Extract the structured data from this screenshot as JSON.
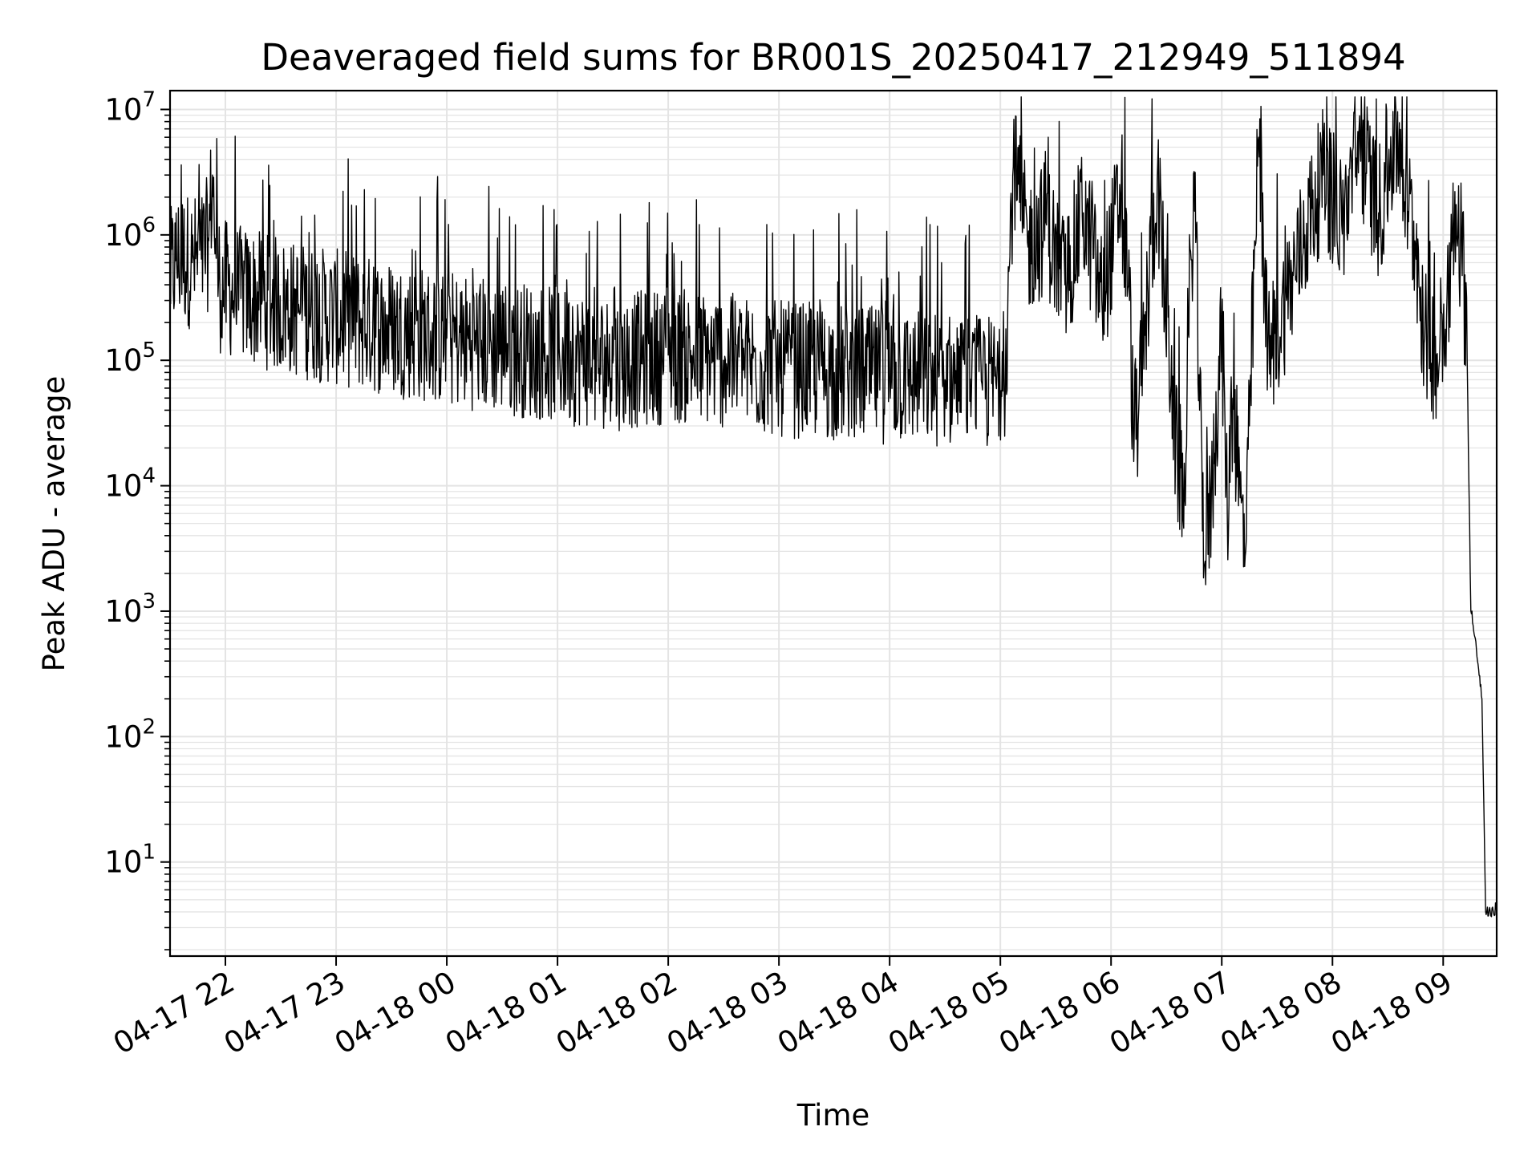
{
  "chart_data": {
    "type": "line",
    "title": "Deaveraged field sums for BR001S_20250417_212949_511894",
    "xlabel": "Time",
    "ylabel": "Peak ADU - average",
    "yscale": "log",
    "ylim_log10": [
      0.25,
      7.15
    ],
    "x_range": [
      "04-17 21:30",
      "04-18 09:29"
    ],
    "grid": true,
    "line_color": "#000000",
    "grid_color": "#e4e4e4",
    "x_ticks": [
      {
        "time": "04-17 22:00",
        "label": "04-17 22"
      },
      {
        "time": "04-17 23:00",
        "label": "04-17 23"
      },
      {
        "time": "04-18 00:00",
        "label": "04-18 00"
      },
      {
        "time": "04-18 01:00",
        "label": "04-18 01"
      },
      {
        "time": "04-18 02:00",
        "label": "04-18 02"
      },
      {
        "time": "04-18 03:00",
        "label": "04-18 03"
      },
      {
        "time": "04-18 04:00",
        "label": "04-18 04"
      },
      {
        "time": "04-18 05:00",
        "label": "04-18 05"
      },
      {
        "time": "04-18 06:00",
        "label": "04-18 06"
      },
      {
        "time": "04-18 07:00",
        "label": "04-18 07"
      },
      {
        "time": "04-18 08:00",
        "label": "04-18 08"
      },
      {
        "time": "04-18 09:00",
        "label": "04-18 09"
      }
    ],
    "y_ticks": [
      {
        "exp": 1,
        "base": "10",
        "sup": "1"
      },
      {
        "exp": 2,
        "base": "10",
        "sup": "2"
      },
      {
        "exp": 3,
        "base": "10",
        "sup": "3"
      },
      {
        "exp": 4,
        "base": "10",
        "sup": "4"
      },
      {
        "exp": 5,
        "base": "10",
        "sup": "5"
      },
      {
        "exp": 6,
        "base": "10",
        "sup": "6"
      },
      {
        "exp": 7,
        "base": "10",
        "sup": "7"
      }
    ],
    "series": [
      {
        "points": [
          [
            "04-17 21:30",
            450000
          ],
          [
            "04-17 21:33",
            620000
          ],
          [
            "04-17 21:37",
            680000
          ],
          [
            "04-17 21:42",
            600000
          ],
          [
            "04-17 21:47",
            640000
          ],
          [
            "04-17 21:51",
            900000
          ],
          [
            "04-17 21:53",
            3000000
          ],
          [
            "04-17 21:55",
            650000
          ],
          [
            "04-17 21:57",
            400000
          ],
          [
            "04-17 22:05",
            350000
          ],
          [
            "04-17 22:20",
            300000
          ],
          [
            "04-17 22:40",
            250000
          ],
          [
            "04-17 23:00",
            220000
          ],
          [
            "04-17 23:30",
            180000
          ],
          [
            "04-18 00:00",
            150000
          ],
          [
            "04-18 00:30",
            130000
          ],
          [
            "04-18 01:00",
            110000
          ],
          [
            "04-18 01:30",
            95000
          ],
          [
            "04-18 02:00",
            110000
          ],
          [
            "04-18 02:30",
            100000
          ],
          [
            "04-18 03:00",
            85000
          ],
          [
            "04-18 03:30",
            80000
          ],
          [
            "04-18 04:00",
            75000
          ],
          [
            "04-18 04:30",
            70000
          ],
          [
            "04-18 04:50",
            65000
          ],
          [
            "04-18 05:02",
            70000
          ],
          [
            "04-18 05:04",
            250000
          ],
          [
            "04-18 05:07",
            3500000
          ],
          [
            "04-18 05:15",
            800000
          ],
          [
            "04-18 05:25",
            1200000
          ],
          [
            "04-18 05:35",
            400000
          ],
          [
            "04-18 05:45",
            1500000
          ],
          [
            "04-18 05:55",
            300000
          ],
          [
            "04-18 06:05",
            2000000
          ],
          [
            "04-18 06:10",
            300000
          ],
          [
            "04-18 06:12",
            30000
          ],
          [
            "04-18 06:15",
            40000
          ],
          [
            "04-18 06:25",
            2700000
          ],
          [
            "04-18 06:35",
            20000
          ],
          [
            "04-18 06:40",
            8000
          ],
          [
            "04-18 06:45",
            3200000
          ],
          [
            "04-18 06:48",
            40000
          ],
          [
            "04-18 06:51",
            2500
          ],
          [
            "04-18 06:55",
            10000
          ],
          [
            "04-18 07:00",
            200000
          ],
          [
            "04-18 07:03",
            6000
          ],
          [
            "04-18 07:06",
            50000
          ],
          [
            "04-18 07:10",
            8000
          ],
          [
            "04-18 07:13",
            3000
          ],
          [
            "04-18 07:15",
            30000
          ],
          [
            "04-18 07:20",
            6000000
          ],
          [
            "04-18 07:25",
            100000
          ],
          [
            "04-18 07:35",
            300000
          ],
          [
            "04-18 07:45",
            1000000
          ],
          [
            "04-18 07:55",
            3000000
          ],
          [
            "04-18 08:05",
            1200000
          ],
          [
            "04-18 08:15",
            5000000
          ],
          [
            "04-18 08:25",
            1500000
          ],
          [
            "04-18 08:35",
            6000000
          ],
          [
            "04-18 08:45",
            800000
          ],
          [
            "04-18 08:50",
            150000
          ],
          [
            "04-18 08:58",
            100000
          ],
          [
            "04-18 09:00",
            200000
          ],
          [
            "04-18 09:04",
            600000
          ],
          [
            "04-18 09:06",
            1000000
          ],
          [
            "04-18 09:08",
            1000000
          ],
          [
            "04-18 09:10",
            900000
          ],
          [
            "04-18 09:13",
            100000
          ],
          [
            "04-18 09:15",
            1000
          ],
          [
            "04-18 09:18",
            500
          ],
          [
            "04-18 09:21",
            200
          ],
          [
            "04-18 09:23",
            4
          ],
          [
            "04-18 09:29",
            4
          ]
        ]
      }
    ]
  }
}
